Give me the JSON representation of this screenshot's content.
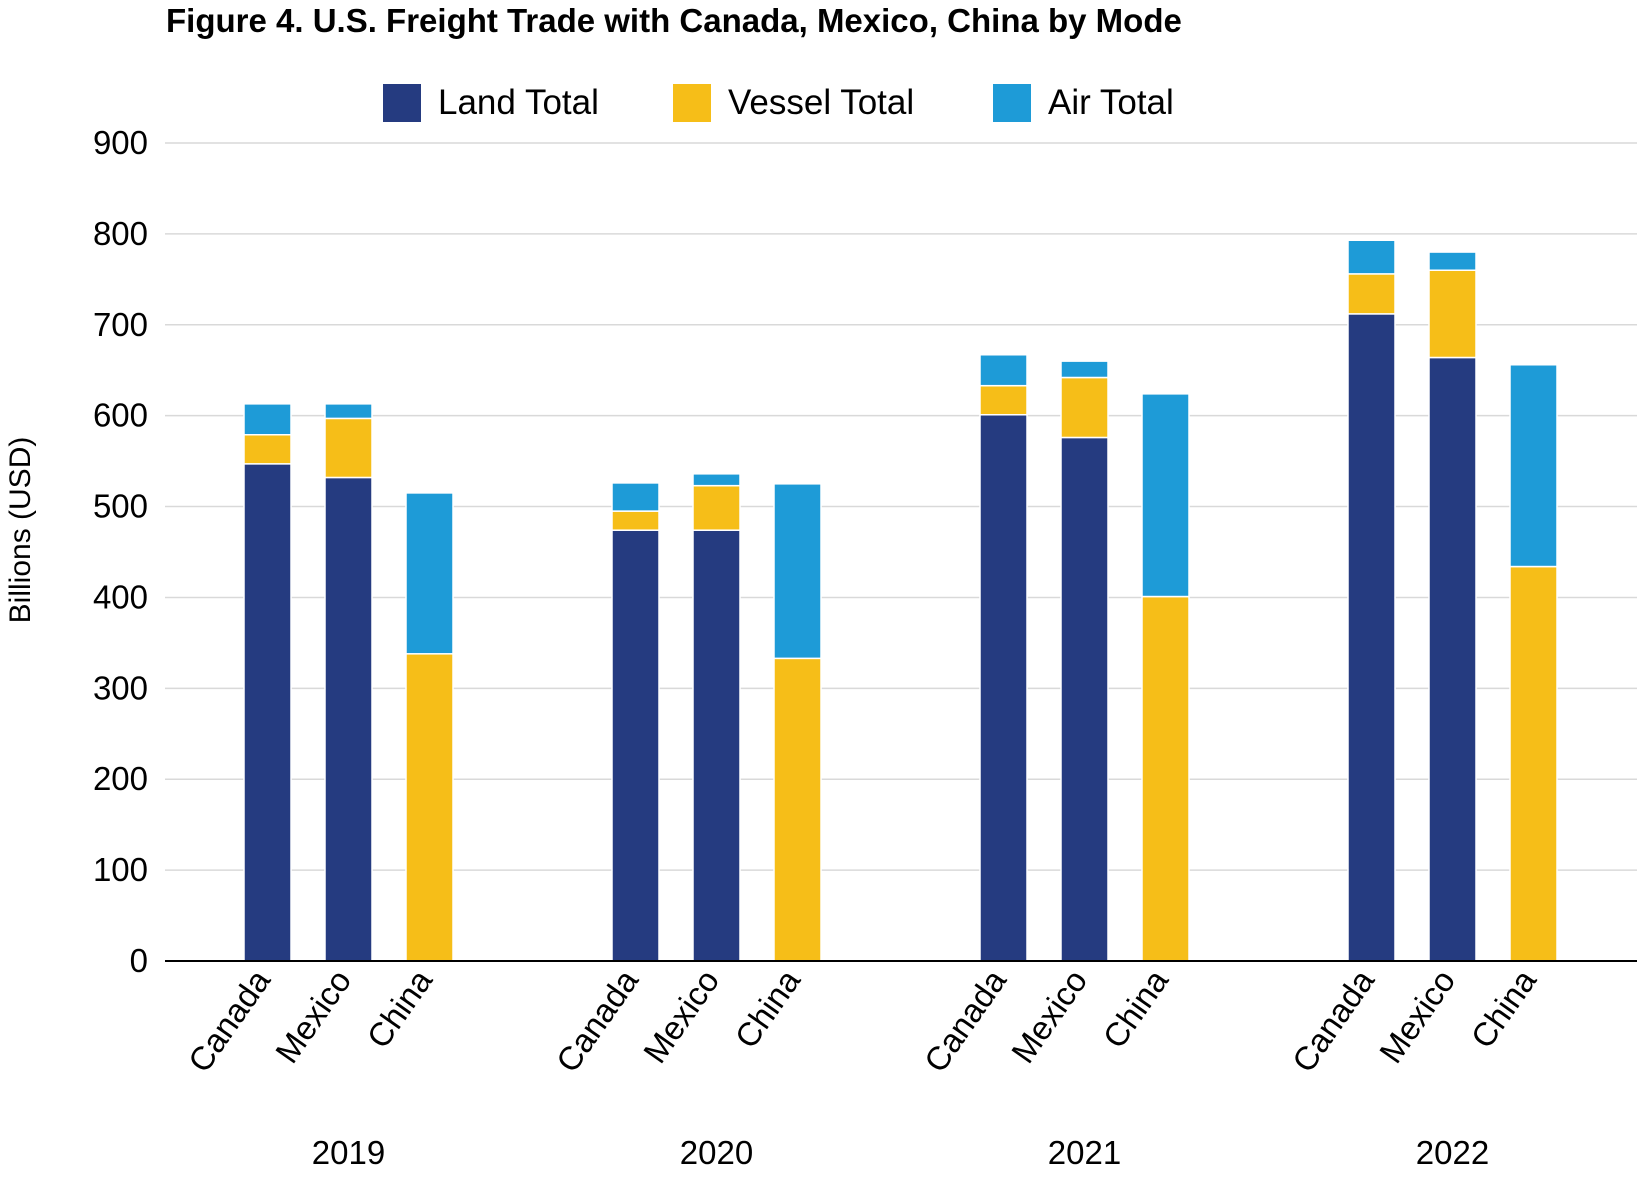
{
  "title": "Figure 4. U.S. Freight Trade with Canada, Mexico, China by Mode",
  "colors": {
    "land": "#253B80",
    "vessel": "#F6BE18",
    "air": "#1E9BD7",
    "grid": "#d9d9d9",
    "axis": "#000000"
  },
  "chart_data": {
    "type": "bar",
    "stacked": true,
    "title": "Figure 4. U.S. Freight Trade with Canada, Mexico, China by Mode",
    "ylabel": "Billions (USD)",
    "xlabel": "",
    "ylim": [
      0,
      900
    ],
    "yticks": [
      0,
      100,
      200,
      300,
      400,
      500,
      600,
      700,
      800,
      900
    ],
    "grid": true,
    "legend_position": "top",
    "groups": [
      {
        "label": "2019",
        "categories": [
          "Canada",
          "Mexico",
          "China"
        ]
      },
      {
        "label": "2020",
        "categories": [
          "Canada",
          "Mexico",
          "China"
        ]
      },
      {
        "label": "2021",
        "categories": [
          "Canada",
          "Mexico",
          "China"
        ]
      },
      {
        "label": "2022",
        "categories": [
          "Canada",
          "Mexico",
          "China"
        ]
      }
    ],
    "series": [
      {
        "name": "Land Total",
        "color": "#253B80",
        "values": [
          547,
          532,
          0,
          474,
          474,
          0,
          601,
          576,
          0,
          712,
          664,
          0
        ]
      },
      {
        "name": "Vessel Total",
        "color": "#F6BE18",
        "values": [
          32,
          65,
          338,
          21,
          49,
          333,
          32,
          66,
          401,
          44,
          96,
          434
        ]
      },
      {
        "name": "Air Total",
        "color": "#1E9BD7",
        "values": [
          34,
          16,
          177,
          31,
          13,
          192,
          34,
          18,
          223,
          37,
          20,
          222
        ]
      }
    ]
  }
}
